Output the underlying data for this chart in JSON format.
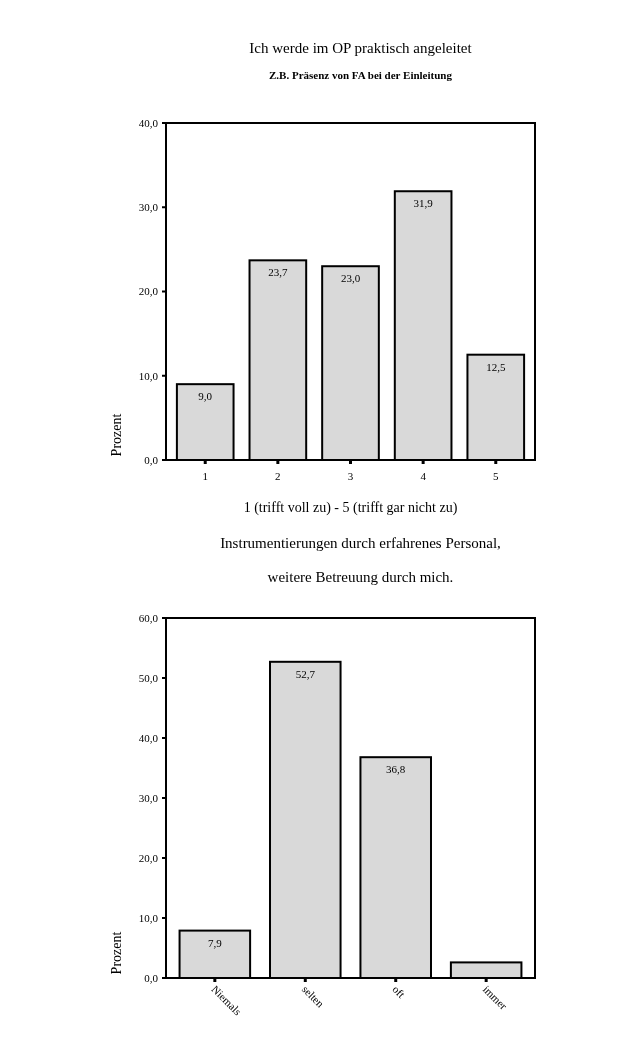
{
  "chart_data": [
    {
      "type": "bar",
      "title": "Ich werde im OP praktisch angeleitet",
      "subtitle": "Z.B. Präsenz von FA bei der Einleitung",
      "xlabel": "1 (trifft voll zu)  - 5 (trifft gar nicht zu)",
      "ylabel": "Prozent",
      "categories": [
        "1",
        "2",
        "3",
        "4",
        "5"
      ],
      "values": [
        9.0,
        23.7,
        23.0,
        31.9,
        12.5
      ],
      "value_labels": [
        "9,0",
        "23,7",
        "23,0",
        "31,9",
        "12,5"
      ],
      "color": "#d9d9d9",
      "ylim": [
        0,
        40
      ],
      "yticks": [
        {
          "value": 0,
          "label": "0,0"
        },
        {
          "value": 10,
          "label": "10,0"
        },
        {
          "value": 20,
          "label": "20,0"
        },
        {
          "value": 30,
          "label": "30,0"
        },
        {
          "value": 40,
          "label": "40,0"
        }
      ],
      "grid": false
    },
    {
      "type": "bar",
      "title": "Instrumentierungen durch erfahrenes Personal,",
      "subtitle": "weitere Betreuung durch mich.",
      "ylabel": "Prozent",
      "categories": [
        "Niemals",
        "selten",
        "oft",
        "immer"
      ],
      "values": [
        7.9,
        52.7,
        36.8,
        2.6
      ],
      "value_labels": [
        "7,9",
        "52,7",
        "36,8",
        null
      ],
      "color": "#d9d9d9",
      "ylim": [
        0,
        60
      ],
      "yticks": [
        {
          "value": 0,
          "label": "0,0"
        },
        {
          "value": 10,
          "label": "10,0"
        },
        {
          "value": 20,
          "label": "20,0"
        },
        {
          "value": 30,
          "label": "30,0"
        },
        {
          "value": 40,
          "label": "40,0"
        },
        {
          "value": 50,
          "label": "50,0"
        },
        {
          "value": 60,
          "label": "60,0"
        }
      ],
      "grid": false
    }
  ]
}
